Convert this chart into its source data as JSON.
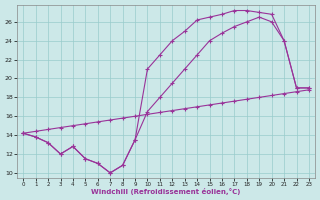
{
  "xlabel": "Windchill (Refroidissement éolien,°C)",
  "background_color": "#cce8e8",
  "line_color": "#993399",
  "xlim_min": -0.5,
  "xlim_max": 23.5,
  "ylim_min": 9.5,
  "ylim_max": 27.8,
  "yticks": [
    10,
    12,
    14,
    16,
    18,
    20,
    22,
    24,
    26
  ],
  "xticks": [
    0,
    1,
    2,
    3,
    4,
    5,
    6,
    7,
    8,
    9,
    10,
    11,
    12,
    13,
    14,
    15,
    16,
    17,
    18,
    19,
    20,
    21,
    22,
    23
  ],
  "grid_color": "#99cccc",
  "line1_x": [
    0,
    1,
    2,
    3,
    4,
    5,
    6,
    7,
    8,
    9,
    10,
    11,
    12,
    13,
    14,
    15,
    16,
    17,
    18,
    19,
    20,
    21,
    22,
    23
  ],
  "line1_y": [
    14.2,
    13.8,
    13.2,
    12.0,
    12.8,
    11.5,
    11.0,
    10.0,
    10.8,
    13.5,
    21.0,
    22.5,
    24.0,
    25.0,
    26.2,
    26.5,
    26.8,
    27.2,
    27.2,
    27.0,
    26.8,
    24.0,
    19.0,
    19.0
  ],
  "line2_x": [
    0,
    1,
    2,
    3,
    4,
    5,
    6,
    7,
    8,
    9,
    10,
    11,
    12,
    13,
    14,
    15,
    16,
    17,
    18,
    19,
    20,
    21,
    22,
    23
  ],
  "line2_y": [
    14.2,
    13.8,
    13.2,
    12.0,
    12.8,
    11.5,
    11.0,
    10.0,
    10.8,
    13.5,
    16.5,
    18.0,
    19.5,
    21.0,
    22.5,
    24.0,
    24.8,
    25.5,
    26.0,
    26.5,
    26.0,
    24.0,
    19.0,
    19.0
  ],
  "line3_x": [
    0,
    1,
    2,
    3,
    4,
    5,
    6,
    7,
    8,
    9,
    10,
    11,
    12,
    13,
    14,
    15,
    16,
    17,
    18,
    19,
    20,
    21,
    22,
    23
  ],
  "line3_y": [
    14.2,
    14.4,
    14.6,
    14.8,
    15.0,
    15.2,
    15.4,
    15.6,
    15.8,
    16.0,
    16.2,
    16.4,
    16.6,
    16.8,
    17.0,
    17.2,
    17.4,
    17.6,
    17.8,
    18.0,
    18.2,
    18.4,
    18.6,
    18.8
  ]
}
